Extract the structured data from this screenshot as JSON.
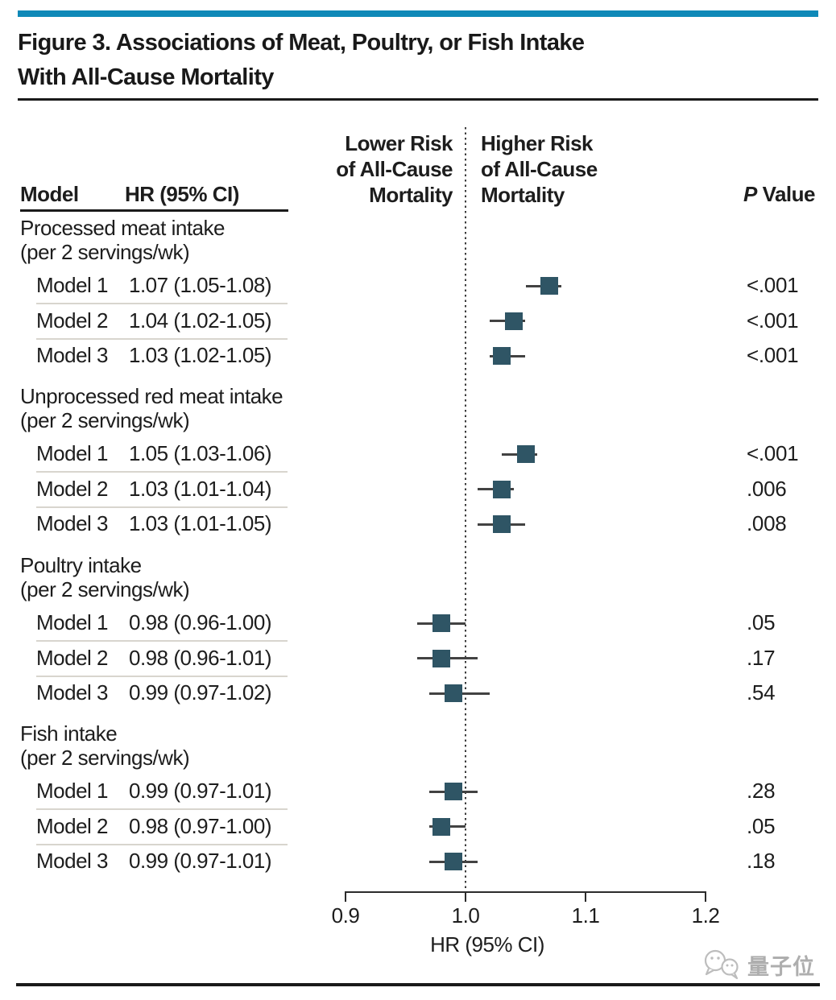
{
  "figure": {
    "title_line1": "Figure 3. Associations of Meat, Poultry, or Fish Intake",
    "title_line2": "With All-Cause Mortality"
  },
  "columns": {
    "model": "Model",
    "hr": "HR (95% CI)",
    "p_value_italic": "P",
    "p_value_rest": " Value",
    "left_header_lines": [
      "Lower Risk",
      "of All-Cause",
      "Mortality"
    ],
    "right_header_lines": [
      "Higher Risk",
      "of All-Cause",
      "Mortality"
    ]
  },
  "chart_data": {
    "type": "forest",
    "xlabel": "HR (95% CI)",
    "axis_ticks": [
      0.9,
      1.0,
      1.1,
      1.2
    ],
    "xlim": [
      0.9,
      1.2
    ],
    "reference_line": 1.0,
    "groups": [
      {
        "label": "Processed meat intake",
        "sublabel": "(per 2 servings/wk)",
        "rows": [
          {
            "model": "Model 1",
            "hr": 1.07,
            "lo": 1.05,
            "hi": 1.08,
            "hr_text": "1.07 (1.05-1.08)",
            "p": "<.001"
          },
          {
            "model": "Model 2",
            "hr": 1.04,
            "lo": 1.02,
            "hi": 1.05,
            "hr_text": "1.04 (1.02-1.05)",
            "p": "<.001"
          },
          {
            "model": "Model 3",
            "hr": 1.03,
            "lo": 1.02,
            "hi": 1.05,
            "hr_text": "1.03 (1.02-1.05)",
            "p": "<.001"
          }
        ]
      },
      {
        "label": "Unprocessed red meat intake",
        "sublabel": "(per 2 servings/wk)",
        "rows": [
          {
            "model": "Model 1",
            "hr": 1.05,
            "lo": 1.03,
            "hi": 1.06,
            "hr_text": "1.05 (1.03-1.06)",
            "p": "<.001"
          },
          {
            "model": "Model 2",
            "hr": 1.03,
            "lo": 1.01,
            "hi": 1.04,
            "hr_text": "1.03 (1.01-1.04)",
            "p": ".006"
          },
          {
            "model": "Model 3",
            "hr": 1.03,
            "lo": 1.01,
            "hi": 1.05,
            "hr_text": "1.03 (1.01-1.05)",
            "p": ".008"
          }
        ]
      },
      {
        "label": "Poultry intake",
        "sublabel": "(per 2 servings/wk)",
        "rows": [
          {
            "model": "Model 1",
            "hr": 0.98,
            "lo": 0.96,
            "hi": 1.0,
            "hr_text": "0.98 (0.96-1.00)",
            "p": ".05"
          },
          {
            "model": "Model 2",
            "hr": 0.98,
            "lo": 0.96,
            "hi": 1.01,
            "hr_text": "0.98 (0.96-1.01)",
            "p": ".17"
          },
          {
            "model": "Model 3",
            "hr": 0.99,
            "lo": 0.97,
            "hi": 1.02,
            "hr_text": "0.99 (0.97-1.02)",
            "p": ".54"
          }
        ]
      },
      {
        "label": "Fish intake",
        "sublabel": "(per 2 servings/wk)",
        "rows": [
          {
            "model": "Model 1",
            "hr": 0.99,
            "lo": 0.97,
            "hi": 1.01,
            "hr_text": "0.99 (0.97-1.01)",
            "p": ".28"
          },
          {
            "model": "Model 2",
            "hr": 0.98,
            "lo": 0.97,
            "hi": 1.0,
            "hr_text": "0.98 (0.97-1.00)",
            "p": ".05"
          },
          {
            "model": "Model 3",
            "hr": 0.99,
            "lo": 0.97,
            "hi": 1.01,
            "hr_text": "0.99 (0.97-1.01)",
            "p": ".18"
          }
        ]
      }
    ]
  },
  "watermark": {
    "text": "量子位"
  },
  "colors": {
    "accent_bar": "#0f89b8",
    "marker": "#2f5565",
    "divider": "#d8d5ce",
    "watermark": "#aeaeae"
  }
}
